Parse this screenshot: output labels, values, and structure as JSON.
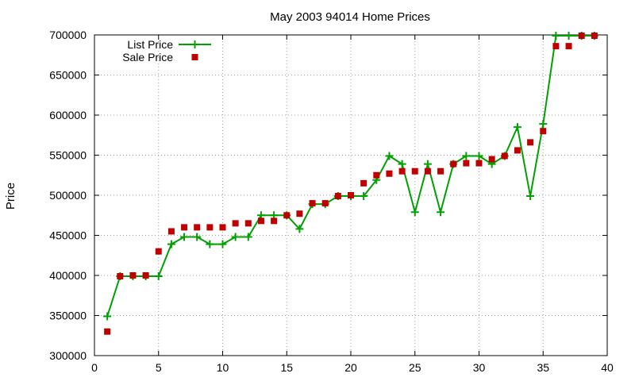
{
  "chart_data": {
    "type": "line",
    "title": "May 2003 94014 Home Prices",
    "xlabel": "",
    "ylabel": "Price",
    "xlim": [
      0,
      40
    ],
    "ylim": [
      300000,
      700000
    ],
    "grid": true,
    "legend_position": "top-left",
    "x_ticks": [
      0,
      5,
      10,
      15,
      20,
      25,
      30,
      35,
      40
    ],
    "y_ticks": [
      300000,
      350000,
      400000,
      450000,
      500000,
      550000,
      600000,
      650000,
      700000
    ],
    "series": [
      {
        "name": "List Price",
        "style": "line-points",
        "color": "#00a000",
        "marker": "plus",
        "x": [
          1,
          2,
          3,
          4,
          5,
          6,
          7,
          8,
          9,
          10,
          11,
          12,
          13,
          14,
          15,
          16,
          17,
          18,
          19,
          20,
          21,
          22,
          23,
          24,
          25,
          26,
          27,
          28,
          29,
          30,
          31,
          32,
          33,
          34,
          35,
          36,
          37,
          38,
          39
        ],
        "y": [
          349000,
          399000,
          399000,
          399000,
          399000,
          439000,
          448000,
          448000,
          439000,
          439000,
          448000,
          448000,
          475000,
          475000,
          475000,
          458000,
          489000,
          489000,
          499000,
          499000,
          499000,
          519000,
          549000,
          539000,
          479000,
          539000,
          479000,
          539000,
          549000,
          549000,
          539000,
          549000,
          585000,
          499000,
          589000,
          699000,
          699000,
          699000,
          699000
        ]
      },
      {
        "name": "Sale Price",
        "style": "points",
        "color": "#c00000",
        "marker": "square",
        "x": [
          1,
          2,
          3,
          4,
          5,
          6,
          7,
          8,
          9,
          10,
          11,
          12,
          13,
          14,
          15,
          16,
          17,
          18,
          19,
          20,
          21,
          22,
          23,
          24,
          25,
          26,
          27,
          28,
          29,
          30,
          31,
          32,
          33,
          34,
          35,
          36,
          37,
          38,
          39
        ],
        "y": [
          330000,
          399000,
          400000,
          400000,
          430000,
          455000,
          460000,
          460000,
          460000,
          460000,
          465000,
          465000,
          468000,
          468000,
          475000,
          477000,
          490000,
          490000,
          499000,
          500000,
          515000,
          525000,
          527000,
          530000,
          530000,
          530000,
          530000,
          539000,
          540000,
          540000,
          545000,
          549000,
          556000,
          566000,
          580000,
          686000,
          686000,
          699000,
          699000
        ]
      }
    ]
  }
}
